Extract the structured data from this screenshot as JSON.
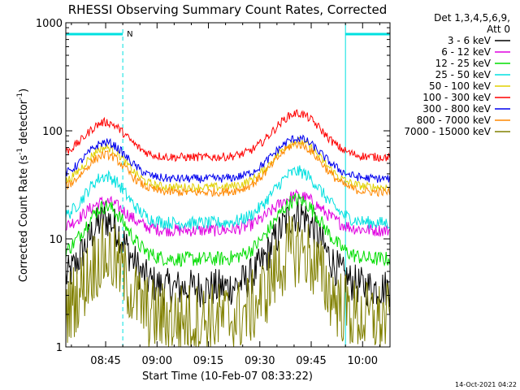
{
  "chart_data": {
    "type": "line",
    "title": "RHESSI Observing Summary Count Rates, Corrected",
    "xlabel": "Start Time (10-Feb-07 08:33:22)",
    "ylabel_main": "Corrected Count Rate (s",
    "ylabel_sup1": "-1",
    "ylabel_mid": " detector",
    "ylabel_sup2": "-1",
    "ylabel_end": ")",
    "yscale": "log",
    "ylim": [
      1,
      1000
    ],
    "xlim_minutes": [
      513.37,
      608.0
    ],
    "x_ticks": [
      {
        "label": "08:45",
        "minute": 525
      },
      {
        "label": "09:00",
        "minute": 540
      },
      {
        "label": "09:15",
        "minute": 555
      },
      {
        "label": "09:30",
        "minute": 570
      },
      {
        "label": "09:45",
        "minute": 585
      },
      {
        "label": "10:00",
        "minute": 600
      }
    ],
    "y_ticks": [
      {
        "label": "1",
        "value": 1
      },
      {
        "label": "10",
        "value": 10
      },
      {
        "label": "100",
        "value": 100
      },
      {
        "label": "1000",
        "value": 1000
      }
    ],
    "legend_header": [
      "Det 1,3,4,5,6,9,",
      "Att 0"
    ],
    "legend_placement": "right",
    "night_label": "N",
    "night_bar_color": "#00e0e0",
    "night_intervals_minutes": [
      [
        513.37,
        530.0
      ],
      [
        595.0,
        608.0
      ]
    ],
    "bumps_minutes": {
      "first_peak": 525.0,
      "second_peak": 581.0
    },
    "series": [
      {
        "name": "3 - 6 keV",
        "color": "#000000",
        "low": 3.5,
        "peak1": 15,
        "peak2": 17,
        "noise": 0.18
      },
      {
        "name": "6 - 12 keV",
        "color": "#e000e0",
        "low": 12,
        "peak1": 22,
        "peak2": 25,
        "noise": 0.06
      },
      {
        "name": "12 - 25 keV",
        "color": "#00dd00",
        "low": 6.5,
        "peak1": 20,
        "peak2": 23,
        "noise": 0.07
      },
      {
        "name": "25 - 50 keV",
        "color": "#00e0e0",
        "low": 14,
        "peak1": 38,
        "peak2": 42,
        "noise": 0.06
      },
      {
        "name": "50 - 100 keV",
        "color": "#e0d000",
        "low": 30,
        "peak1": 70,
        "peak2": 80,
        "noise": 0.04
      },
      {
        "name": "100 - 300 keV",
        "color": "#ff0000",
        "low": 57,
        "peak1": 120,
        "peak2": 145,
        "noise": 0.04
      },
      {
        "name": "300 - 800 keV",
        "color": "#0000ee",
        "low": 36,
        "peak1": 78,
        "peak2": 85,
        "noise": 0.04
      },
      {
        "name": "800 - 7000 keV",
        "color": "#ff8800",
        "low": 27,
        "peak1": 60,
        "peak2": 75,
        "noise": 0.04
      },
      {
        "name": "7000 - 15000 keV",
        "color": "#808000",
        "low": 1.8,
        "peak1": 7,
        "peak2": 8,
        "noise": 0.35
      }
    ],
    "timestamp": "14-Oct-2021 04:22"
  }
}
